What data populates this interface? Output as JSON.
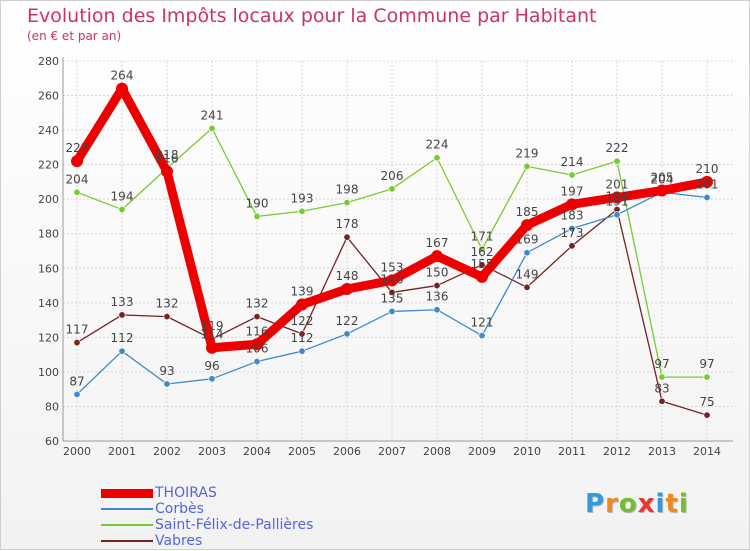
{
  "chart_data": {
    "type": "line",
    "title": "Evolution des Impôts locaux pour la Commune par Habitant",
    "subtitle": "(en € et par an)",
    "x": [
      "2000",
      "2001",
      "2002",
      "2003",
      "2004",
      "2005",
      "2006",
      "2007",
      "2008",
      "2009",
      "2010",
      "2011",
      "2012",
      "2013",
      "2014"
    ],
    "ylim": [
      60,
      280
    ],
    "yticks": [
      60,
      80,
      100,
      120,
      140,
      160,
      180,
      200,
      220,
      240,
      260,
      280
    ],
    "grid": true,
    "legend_position": "bottom-left",
    "series": [
      {
        "name": "THOIRAS",
        "color": "#ee0000",
        "values": [
          222,
          264,
          216,
          114,
          116,
          139,
          148,
          153,
          167,
          155,
          185,
          197,
          201,
          205,
          210
        ]
      },
      {
        "name": "Corbès",
        "color": "#4488cc",
        "values": [
          87,
          112,
          93,
          96,
          106,
          112,
          122,
          135,
          136,
          121,
          169,
          183,
          191,
          204,
          201
        ]
      },
      {
        "name": "Saint-Félix-de-Pallières",
        "color": "#77cc33",
        "values": [
          204,
          194,
          218,
          241,
          190,
          193,
          198,
          206,
          224,
          171,
          219,
          214,
          222,
          97,
          97
        ]
      },
      {
        "name": "Vabres",
        "color": "#772222",
        "values": [
          117,
          133,
          132,
          119,
          132,
          122,
          178,
          146,
          150,
          162,
          149,
          173,
          194,
          83,
          75
        ]
      }
    ]
  },
  "brand": {
    "letters": [
      "P",
      "r",
      "o",
      "x",
      "i",
      "t",
      "i"
    ],
    "colors": [
      "#3399dd",
      "#ee8822",
      "#77bb33",
      "#ee3333",
      "#3399dd",
      "#ee8822",
      "#77bb33"
    ]
  }
}
